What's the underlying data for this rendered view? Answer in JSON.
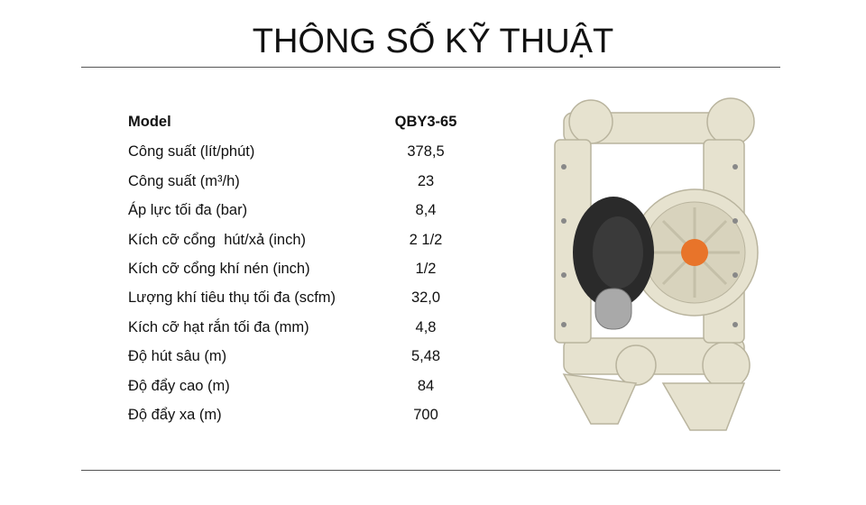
{
  "title": "THÔNG SỐ KỸ THUẬT",
  "specs": {
    "header": {
      "label": "Model",
      "value": "QBY3-65"
    },
    "rows": [
      {
        "label": "Công suất (lít/phút)",
        "value": "378,5"
      },
      {
        "label": "Công suất (m³/h)",
        "value": "23"
      },
      {
        "label": "Áp lực tối đa (bar)",
        "value": "8,4"
      },
      {
        "label": "Kích cỡ cổng  hút/xả (inch)",
        "value": "2 1/2"
      },
      {
        "label": "Kích cỡ cổng khí nén (inch)",
        "value": "1/2"
      },
      {
        "label": "Lượng khí tiêu thụ tối đa (scfm)",
        "value": "32,0"
      },
      {
        "label": "Kích cỡ hạt rắn tối đa (mm)",
        "value": "4,8"
      },
      {
        "label": "Độ hút sâu (m)",
        "value": "5,48"
      },
      {
        "label": "Độ đẩy cao (m)",
        "value": "84"
      },
      {
        "label": "Độ đẩy xa (m)",
        "value": "700"
      }
    ]
  },
  "colors": {
    "pump_body": "#e6e2cf",
    "diaphragm": "#2a2a2a",
    "logo": "#e8742a"
  }
}
